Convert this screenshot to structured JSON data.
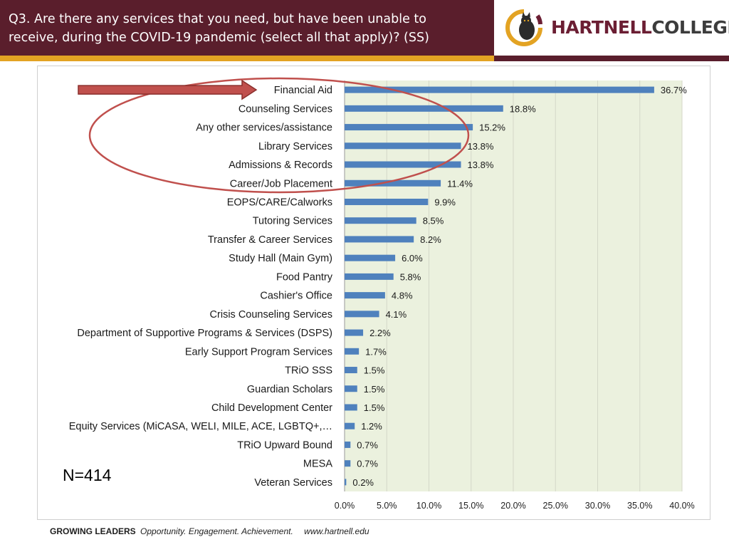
{
  "header": {
    "title_line1": "Q3. Are there any services that you need, but have been unable to",
    "title_line2": "receive, during the COVID-19 pandemic (select all that apply)? (SS)"
  },
  "logo": {
    "part1": "HARTNELL",
    "part2": "COLLEGE"
  },
  "colors": {
    "maroon": "#5a1e2c",
    "gold": "#e3a323",
    "bar": "#4f81bd",
    "plot_bg": "#ebf1de",
    "highlight": "#c0504d"
  },
  "chart_data": {
    "type": "bar",
    "orientation": "horizontal",
    "categories": [
      "Financial Aid",
      "Counseling Services",
      "Any other services/assistance",
      "Library Services",
      "Admissions & Records",
      "Career/Job Placement",
      "EOPS/CARE/Calworks",
      "Tutoring Services",
      "Transfer & Career Services",
      "Study Hall (Main Gym)",
      "Food Pantry",
      "Cashier's Office",
      "Crisis Counseling Services",
      "Department of Supportive Programs & Services (DSPS)",
      "Early Support Program Services",
      "TRiO SSS",
      "Guardian Scholars",
      "Child Development Center",
      "Equity Services (MiCASA, WELI, MILE, ACE, LGBTQ+,…",
      "TRiO Upward Bound",
      "MESA",
      "Veteran Services"
    ],
    "values": [
      36.7,
      18.8,
      15.2,
      13.8,
      13.8,
      11.4,
      9.9,
      8.5,
      8.2,
      6.0,
      5.8,
      4.8,
      4.1,
      2.2,
      1.7,
      1.5,
      1.5,
      1.5,
      1.2,
      0.7,
      0.7,
      0.2
    ],
    "value_labels": [
      "36.7%",
      "18.8%",
      "15.2%",
      "13.8%",
      "13.8%",
      "11.4%",
      "9.9%",
      "8.5%",
      "8.2%",
      "6.0%",
      "5.8%",
      "4.8%",
      "4.1%",
      "2.2%",
      "1.7%",
      "1.5%",
      "1.5%",
      "1.5%",
      "1.2%",
      "0.7%",
      "0.7%",
      "0.2%"
    ],
    "xlim": [
      0,
      40
    ],
    "x_ticks": [
      "0.0%",
      "5.0%",
      "10.0%",
      "15.0%",
      "20.0%",
      "25.0%",
      "30.0%",
      "35.0%",
      "40.0%"
    ],
    "grid": true,
    "title": "",
    "xlabel": "",
    "ylabel": "",
    "annotations": {
      "arrow_target": "Financial Aid",
      "circled": [
        "Financial Aid",
        "Counseling Services",
        "Any other services/assistance",
        "Library Services",
        "Admissions & Records",
        "Career/Job Placement"
      ]
    }
  },
  "sample_size": "N=414",
  "footer": {
    "brand": "GROWING LEADERS",
    "tagline": "Opportunity. Engagement. Achievement.",
    "url": "www.hartnell.edu"
  }
}
